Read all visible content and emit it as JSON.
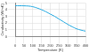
{
  "chart_data": {
    "type": "line",
    "x_label": "Temperature (K)",
    "y_label": "Conductivity (W/mK)",
    "x": [
      0,
      25,
      50,
      75,
      100,
      125,
      150,
      175,
      200,
      225,
      250,
      275,
      300,
      325,
      350,
      375,
      400
    ],
    "values": [
      4.6,
      4.6,
      4.58,
      4.55,
      4.45,
      4.25,
      4.0,
      3.7,
      3.35,
      3.0,
      2.6,
      2.2,
      1.8,
      1.45,
      1.15,
      0.95,
      0.8
    ],
    "color": "#29abe2",
    "xlim": [
      0,
      400
    ],
    "xticks": [
      0,
      50,
      100,
      150,
      200,
      250,
      300,
      350,
      400
    ],
    "ylim": [
      0,
      5
    ],
    "yticks": [
      0,
      1,
      2,
      3,
      4,
      5
    ],
    "grid": true
  }
}
